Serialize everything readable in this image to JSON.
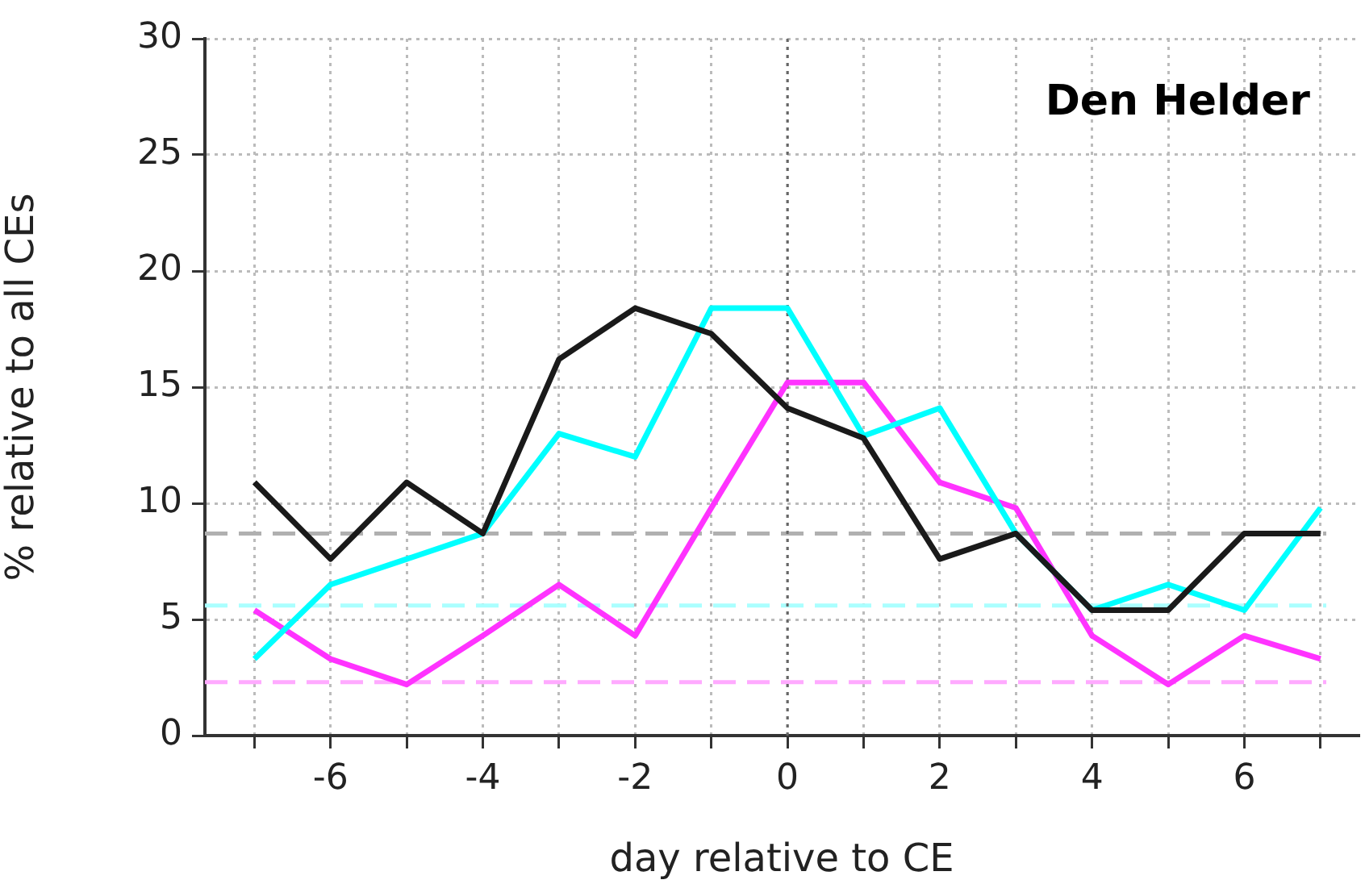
{
  "chart_data": {
    "type": "line",
    "title": "Den Helder",
    "xlabel": "day relative to CE",
    "ylabel": "% relative to all CEs",
    "x": [
      -7,
      -6,
      -5,
      -4,
      -3,
      -2,
      -1,
      0,
      1,
      2,
      3,
      4,
      5,
      6,
      7
    ],
    "series": [
      {
        "color": "#1a1a1a",
        "values": [
          10.9,
          7.6,
          10.9,
          8.7,
          16.2,
          18.4,
          17.3,
          14.1,
          12.8,
          7.6,
          8.7,
          5.4,
          5.4,
          8.7,
          8.7
        ]
      },
      {
        "color": "#00ffff",
        "values": [
          3.3,
          6.5,
          7.6,
          8.7,
          13.0,
          12.0,
          18.4,
          18.4,
          12.9,
          14.1,
          8.7,
          5.4,
          6.5,
          5.4,
          9.8
        ]
      },
      {
        "color": "#ff33ff",
        "values": [
          5.4,
          3.3,
          2.2,
          4.3,
          6.5,
          4.3,
          9.8,
          15.2,
          15.2,
          10.9,
          9.8,
          4.3,
          2.2,
          4.3,
          3.3
        ]
      }
    ],
    "ref_lines": [
      {
        "axis": "y",
        "value": 8.7,
        "color": "#b0b0b0",
        "line_style": "dashed"
      },
      {
        "axis": "y",
        "value": 5.6,
        "color": "#aaffff",
        "line_style": "dashed"
      },
      {
        "axis": "y",
        "value": 2.3,
        "color": "#ffaaff",
        "line_style": "dashed"
      },
      {
        "axis": "x",
        "value": 0,
        "color": "#666666",
        "line_style": "dotted"
      }
    ],
    "xlim": [
      -7.65,
      7.5
    ],
    "xticks": [
      {
        "value": -7,
        "label": null
      },
      -6,
      {
        "value": -5,
        "label": null
      },
      -4,
      {
        "value": -3,
        "label": null
      },
      -2,
      {
        "value": -1,
        "label": null
      },
      0,
      {
        "value": 1,
        "label": null
      },
      2,
      {
        "value": 3,
        "label": null
      },
      4,
      {
        "value": 5,
        "label": null
      },
      6,
      {
        "value": 7,
        "label": null
      }
    ],
    "ylim": [
      0,
      30
    ],
    "yticks": [
      0,
      5,
      10,
      15,
      20,
      25,
      30
    ],
    "grid": true,
    "legend": false,
    "marker": "none",
    "line_style": "solid"
  }
}
